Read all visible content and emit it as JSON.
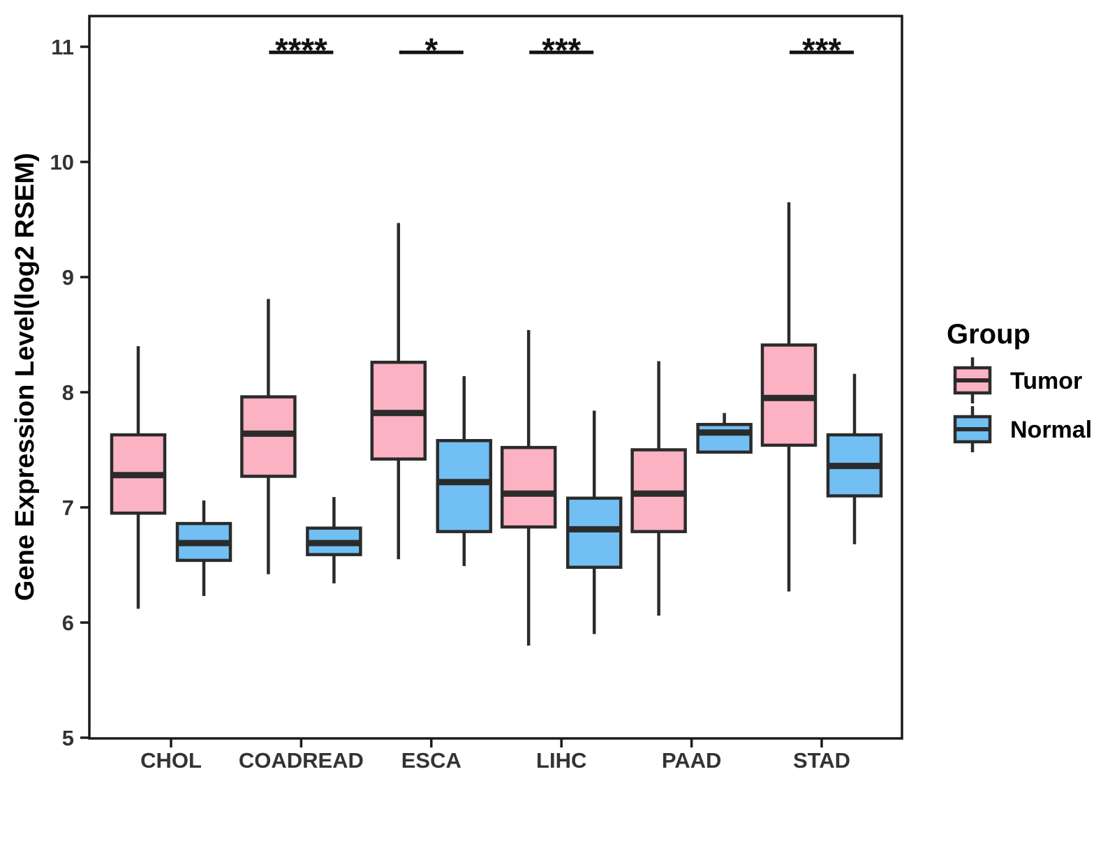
{
  "chart_data": {
    "type": "boxplot",
    "title": "",
    "xlabel": "",
    "ylabel": "Gene Expression Level(log2 RSEM)",
    "ylim": [
      5,
      11.3
    ],
    "yticks": [
      5,
      6,
      7,
      8,
      9,
      10,
      11
    ],
    "grid": "off",
    "categories": [
      "CHOL",
      "COADREAD",
      "ESCA",
      "LIHC",
      "PAAD",
      "STAD"
    ],
    "groups": [
      "Tumor",
      "Normal"
    ],
    "colors": {
      "tumor_fill": "#FBB2C3",
      "normal_fill": "#72BFF3",
      "box_border": "#2B2B2B",
      "axis_text": "#333333",
      "axis_line": "#1A1A1A"
    },
    "series": [
      {
        "name": "Tumor",
        "fill": "#FBB2C3",
        "boxes": [
          {
            "category": "CHOL",
            "low": 6.12,
            "q1": 6.95,
            "median": 7.28,
            "q3": 7.63,
            "high": 8.4
          },
          {
            "category": "COADREAD",
            "low": 6.42,
            "q1": 7.27,
            "median": 7.64,
            "q3": 7.96,
            "high": 8.81
          },
          {
            "category": "ESCA",
            "low": 6.55,
            "q1": 7.42,
            "median": 7.82,
            "q3": 8.26,
            "high": 9.47
          },
          {
            "category": "LIHC",
            "low": 5.8,
            "q1": 6.83,
            "median": 7.12,
            "q3": 7.52,
            "high": 8.54
          },
          {
            "category": "PAAD",
            "low": 6.06,
            "q1": 6.79,
            "median": 7.12,
            "q3": 7.5,
            "high": 8.27
          },
          {
            "category": "STAD",
            "low": 6.27,
            "q1": 7.54,
            "median": 7.95,
            "q3": 8.41,
            "high": 9.65
          }
        ]
      },
      {
        "name": "Normal",
        "fill": "#72BFF3",
        "boxes": [
          {
            "category": "CHOL",
            "low": 6.23,
            "q1": 6.54,
            "median": 6.69,
            "q3": 6.86,
            "high": 7.06
          },
          {
            "category": "COADREAD",
            "low": 6.34,
            "q1": 6.59,
            "median": 6.69,
            "q3": 6.82,
            "high": 7.09
          },
          {
            "category": "ESCA",
            "low": 6.49,
            "q1": 6.79,
            "median": 7.22,
            "q3": 7.58,
            "high": 8.14
          },
          {
            "category": "LIHC",
            "low": 5.9,
            "q1": 6.48,
            "median": 6.81,
            "q3": 7.08,
            "high": 7.84
          },
          {
            "category": "PAAD",
            "low": 7.48,
            "q1": 7.48,
            "median": 7.65,
            "q3": 7.72,
            "high": 7.82
          },
          {
            "category": "STAD",
            "low": 6.68,
            "q1": 7.1,
            "median": 7.36,
            "q3": 7.63,
            "high": 8.16
          }
        ]
      }
    ],
    "significance": [
      {
        "category": "COADREAD",
        "label": "****"
      },
      {
        "category": "ESCA",
        "label": "*"
      },
      {
        "category": "LIHC",
        "label": "***"
      },
      {
        "category": "STAD",
        "label": "***"
      }
    ],
    "legend": {
      "title": "Group",
      "position": "right",
      "entries": [
        {
          "label": "Tumor",
          "fill": "#FBB2C3"
        },
        {
          "label": "Normal",
          "fill": "#72BFF3"
        }
      ]
    }
  }
}
